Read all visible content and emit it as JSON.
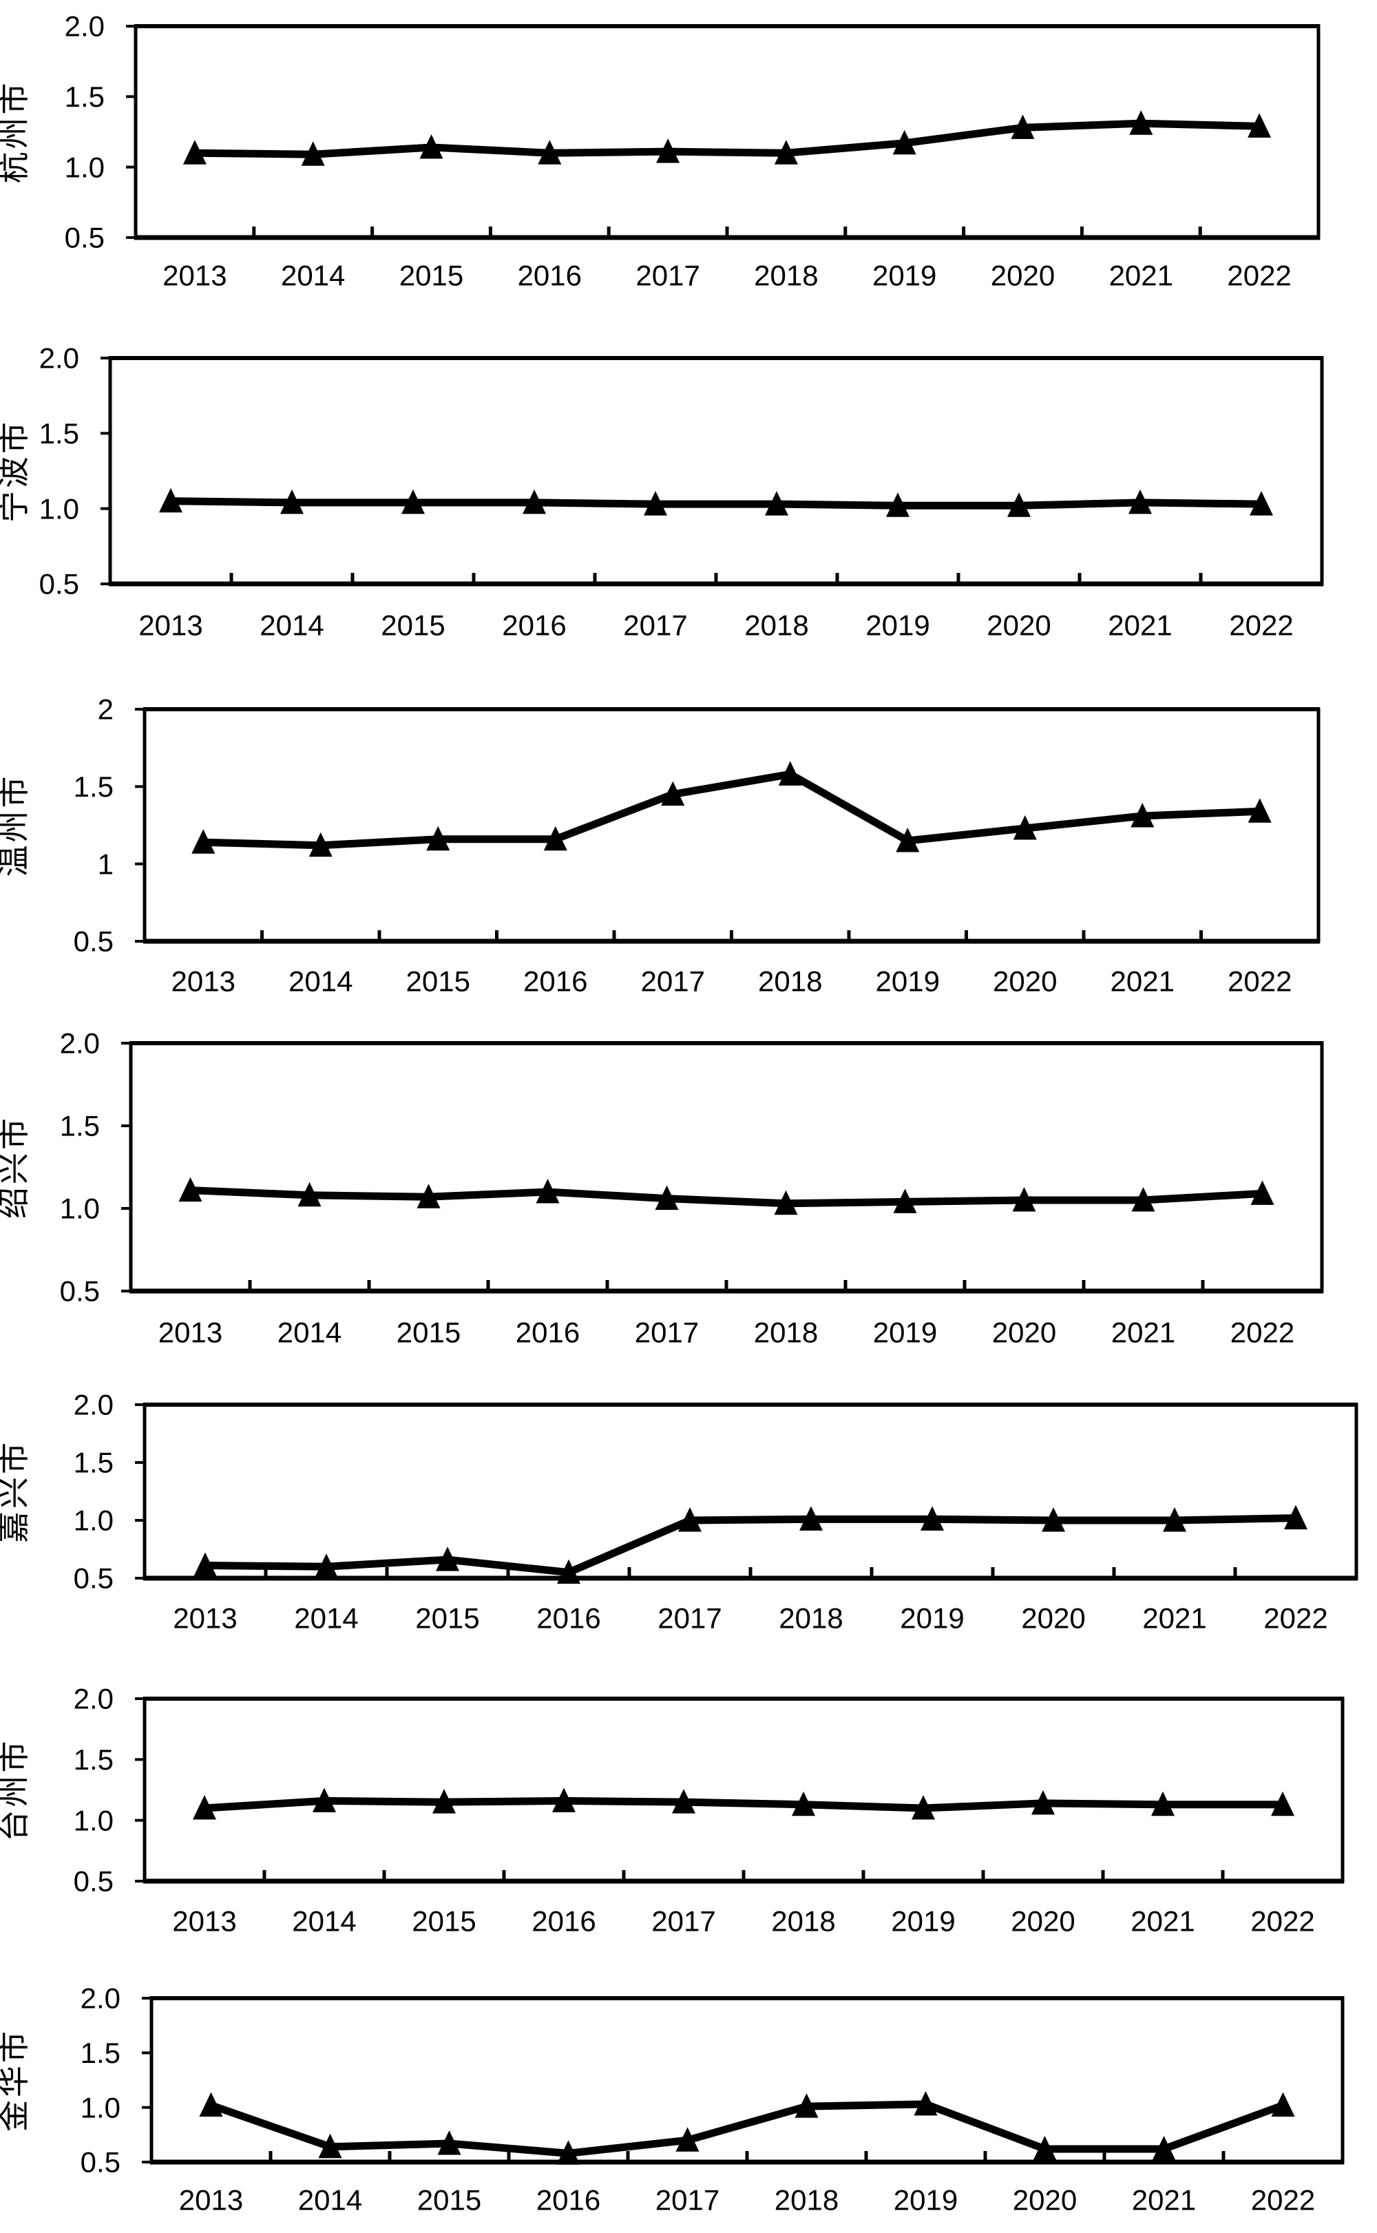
{
  "figure": {
    "background_color": "#ffffff",
    "series_color": "#000000",
    "marker": "filled-triangle-up"
  },
  "chart_data": [
    {
      "type": "line",
      "id": "hangzhou",
      "city": "杭州市",
      "x": [
        "2013",
        "2014",
        "2015",
        "2016",
        "2017",
        "2018",
        "2019",
        "2020",
        "2021",
        "2022"
      ],
      "values": [
        1.1,
        1.09,
        1.14,
        1.1,
        1.11,
        1.1,
        1.17,
        1.28,
        1.31,
        1.29
      ],
      "ylim": [
        0.5,
        2.0
      ],
      "y_tick_labels": [
        "2.0",
        "1.5",
        "1.0",
        "0.5"
      ],
      "y_tick_values": [
        2.0,
        1.5,
        1.0,
        0.5
      ],
      "grid": false,
      "line_color": "#000000",
      "marker": "filled-triangle-up"
    },
    {
      "type": "line",
      "id": "ningbo",
      "city": "宁波市",
      "x": [
        "2013",
        "2014",
        "2015",
        "2016",
        "2017",
        "2018",
        "2019",
        "2020",
        "2021",
        "2022"
      ],
      "values": [
        1.05,
        1.04,
        1.04,
        1.04,
        1.03,
        1.03,
        1.02,
        1.02,
        1.04,
        1.03
      ],
      "ylim": [
        0.5,
        2.0
      ],
      "y_tick_labels": [
        "2.0",
        "1.5",
        "1.0",
        "0.5"
      ],
      "y_tick_values": [
        2.0,
        1.5,
        1.0,
        0.5
      ],
      "grid": false,
      "line_color": "#000000",
      "marker": "filled-triangle-up"
    },
    {
      "type": "line",
      "id": "wenzhou",
      "city": "温州市",
      "x": [
        "2013",
        "2014",
        "2015",
        "2016",
        "2017",
        "2018",
        "2019",
        "2020",
        "2021",
        "2022"
      ],
      "values": [
        1.14,
        1.12,
        1.16,
        1.16,
        1.45,
        1.58,
        1.15,
        1.23,
        1.31,
        1.34
      ],
      "ylim": [
        0.5,
        2.0
      ],
      "y_tick_labels": [
        "2",
        "1.5",
        "1",
        "0.5"
      ],
      "y_tick_values": [
        2.0,
        1.5,
        1.0,
        0.5
      ],
      "grid": false,
      "line_color": "#000000",
      "marker": "filled-triangle-up"
    },
    {
      "type": "line",
      "id": "shaoxing",
      "city": "绍兴市",
      "x": [
        "2013",
        "2014",
        "2015",
        "2016",
        "2017",
        "2018",
        "2019",
        "2020",
        "2021",
        "2022"
      ],
      "values": [
        1.11,
        1.08,
        1.07,
        1.1,
        1.06,
        1.03,
        1.04,
        1.05,
        1.05,
        1.09
      ],
      "ylim": [
        0.5,
        2.0
      ],
      "y_tick_labels": [
        "2.0",
        "1.5",
        "1.0",
        "0.5"
      ],
      "y_tick_values": [
        2.0,
        1.5,
        1.0,
        0.5
      ],
      "grid": false,
      "line_color": "#000000",
      "marker": "filled-triangle-up"
    },
    {
      "type": "line",
      "id": "jiaxing",
      "city": "嘉兴市",
      "x": [
        "2013",
        "2014",
        "2015",
        "2016",
        "2017",
        "2018",
        "2019",
        "2020",
        "2021",
        "2022"
      ],
      "values": [
        0.61,
        0.6,
        0.66,
        0.55,
        1.0,
        1.01,
        1.01,
        1.0,
        1.0,
        1.02
      ],
      "ylim": [
        0.5,
        2.0
      ],
      "y_tick_labels": [
        "2.0",
        "1.5",
        "1.0",
        "0.5"
      ],
      "y_tick_values": [
        2.0,
        1.5,
        1.0,
        0.5
      ],
      "grid": false,
      "line_color": "#000000",
      "marker": "filled-triangle-up"
    },
    {
      "type": "line",
      "id": "taizhou",
      "city": "台州市",
      "x": [
        "2013",
        "2014",
        "2015",
        "2016",
        "2017",
        "2018",
        "2019",
        "2020",
        "2021",
        "2022"
      ],
      "values": [
        1.1,
        1.16,
        1.15,
        1.16,
        1.15,
        1.13,
        1.1,
        1.14,
        1.13,
        1.13
      ],
      "ylim": [
        0.5,
        2.0
      ],
      "y_tick_labels": [
        "2.0",
        "1.5",
        "1.0",
        "0.5"
      ],
      "y_tick_values": [
        2.0,
        1.5,
        1.0,
        0.5
      ],
      "grid": false,
      "line_color": "#000000",
      "marker": "filled-triangle-up"
    },
    {
      "type": "line",
      "id": "jinhua",
      "city": "金华市",
      "x": [
        "2013",
        "2014",
        "2015",
        "2016",
        "2017",
        "2018",
        "2019",
        "2020",
        "2021",
        "2022"
      ],
      "values": [
        1.02,
        0.64,
        0.67,
        0.58,
        0.7,
        1.01,
        1.03,
        0.62,
        0.62,
        1.02
      ],
      "ylim": [
        0.5,
        2.0
      ],
      "y_tick_labels": [
        "2.0",
        "1.5",
        "1.0",
        "0.5"
      ],
      "y_tick_values": [
        2.0,
        1.5,
        1.0,
        0.5
      ],
      "grid": false,
      "line_color": "#000000",
      "marker": "filled-triangle-up"
    }
  ]
}
